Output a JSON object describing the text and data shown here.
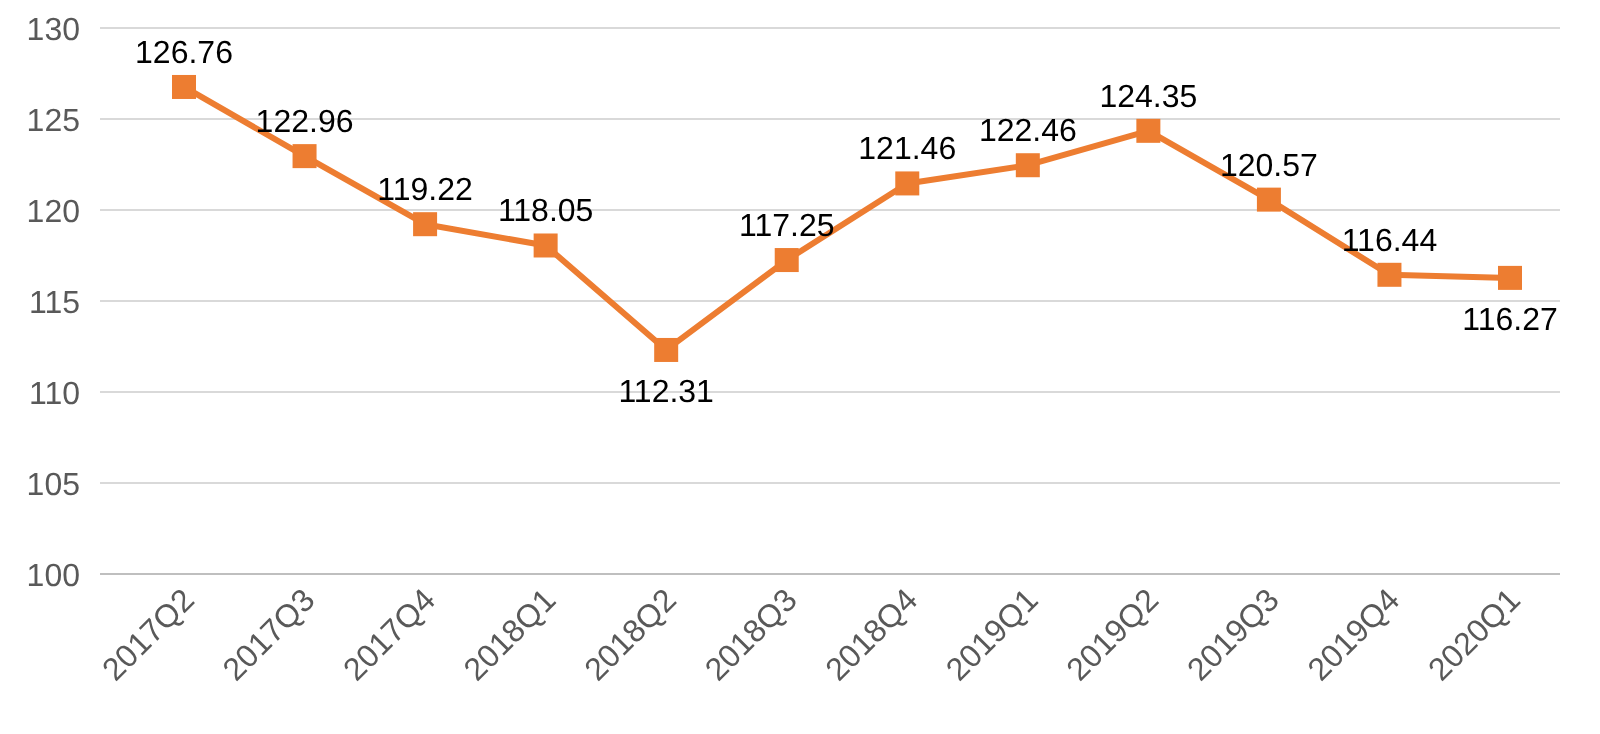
{
  "chart_data": {
    "type": "line",
    "categories": [
      "2017Q2",
      "2017Q3",
      "2017Q4",
      "2018Q1",
      "2018Q2",
      "2018Q3",
      "2018Q4",
      "2019Q1",
      "2019Q2",
      "2019Q3",
      "2019Q4",
      "2020Q1"
    ],
    "series": [
      {
        "color": "#ed7d31",
        "values": [
          126.76,
          122.96,
          119.22,
          118.05,
          112.31,
          117.25,
          121.46,
          122.46,
          124.35,
          120.57,
          116.44,
          116.27
        ]
      }
    ],
    "ylim": [
      100,
      130
    ],
    "yticks": [
      100,
      105,
      110,
      115,
      120,
      125,
      130
    ],
    "grid": "y",
    "marker": "square",
    "line_style": "solid",
    "data_labels": true
  }
}
